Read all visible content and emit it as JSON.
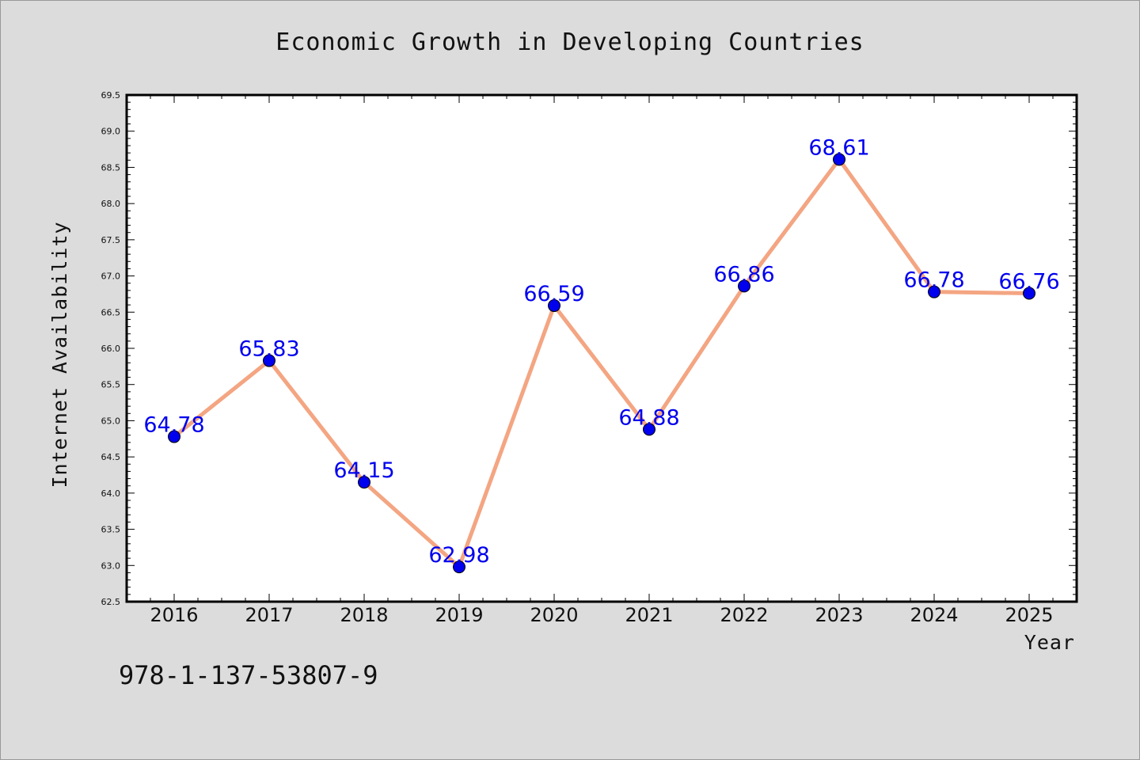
{
  "chart_data": {
    "type": "line",
    "title": "Economic Growth in Developing Countries",
    "xlabel": "Year",
    "ylabel": "Internet Availability",
    "categories": [
      "2016",
      "2017",
      "2018",
      "2019",
      "2020",
      "2021",
      "2022",
      "2023",
      "2024",
      "2025"
    ],
    "values": [
      64.78,
      65.83,
      64.15,
      62.98,
      66.59,
      64.88,
      66.86,
      68.61,
      66.78,
      66.76
    ],
    "data_labels": [
      "64.78",
      "65.83",
      "64.15",
      "62.98",
      "66.59",
      "64.88",
      "66.86",
      "68.61",
      "66.78",
      "66.76"
    ],
    "ylim": [
      62.5,
      69.5
    ],
    "yticks": [
      "62.5",
      "63.0",
      "63.5",
      "64.0",
      "64.5",
      "65.0",
      "65.5",
      "66.0",
      "66.5",
      "67.0",
      "67.5",
      "68.0",
      "68.5",
      "69.0",
      "69.5"
    ],
    "grid": false,
    "legend": "none",
    "colors": {
      "line": "#f4a582",
      "marker": "#0000ee",
      "label": "#0000ee",
      "background": "#dcdcdc",
      "plot_background": "#ffffff"
    }
  },
  "annotation": "978-1-137-53807-9"
}
